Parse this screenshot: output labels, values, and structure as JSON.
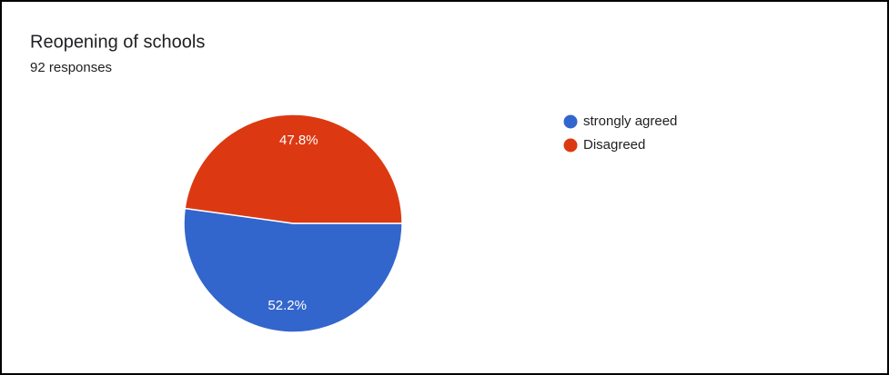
{
  "chart_data": {
    "type": "pie",
    "title": "Reopening of schools",
    "subtitle": "92 responses",
    "categories": [
      "strongly agreed",
      "Disagreed"
    ],
    "values": [
      52.2,
      47.8
    ],
    "value_labels": [
      "52.2%",
      "47.8%"
    ],
    "colors": [
      "#3366cc",
      "#dc3912"
    ]
  }
}
